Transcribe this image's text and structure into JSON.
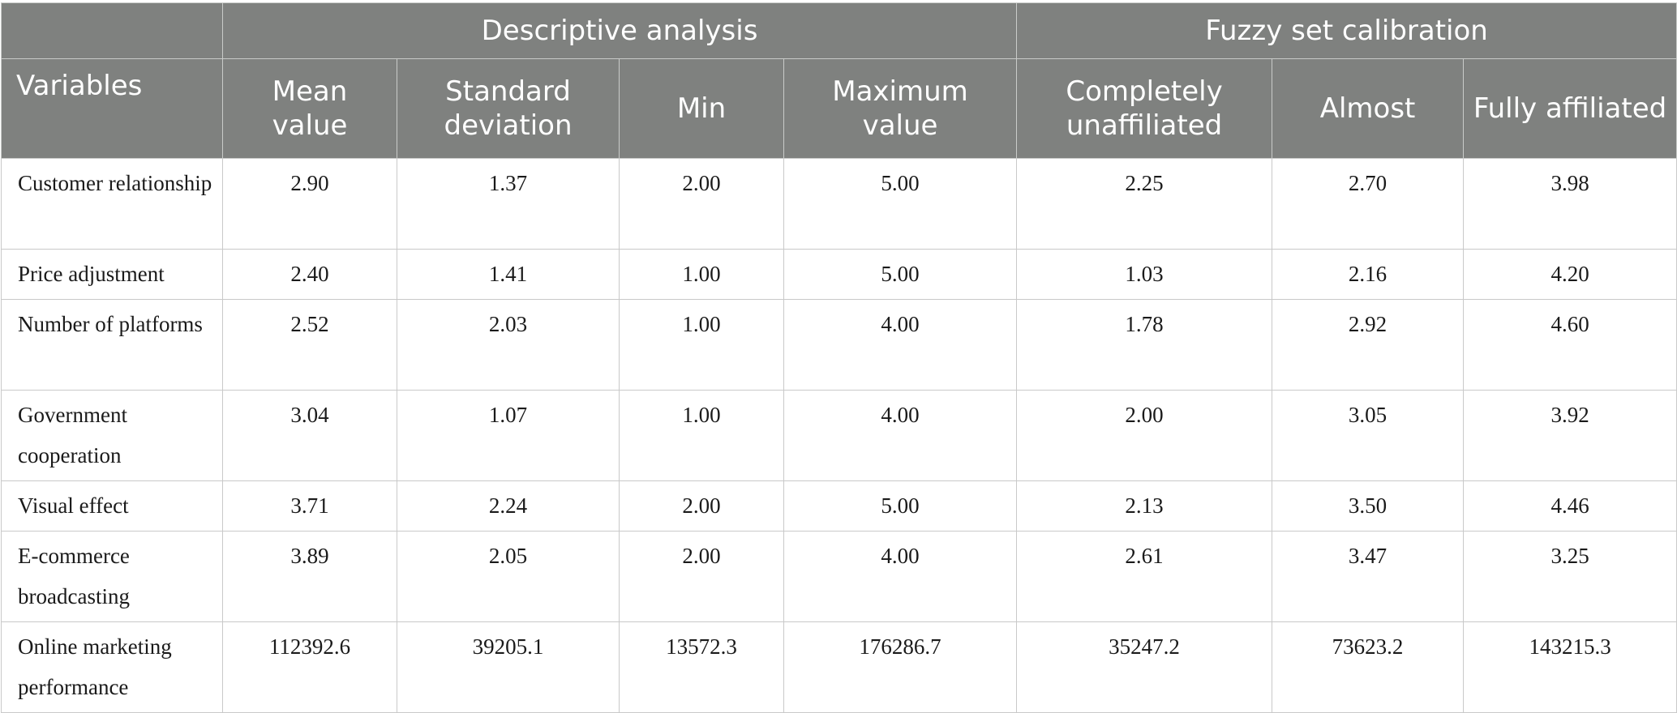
{
  "groups": {
    "descriptive": "Descriptive analysis",
    "fuzzy": "Fuzzy set calibration"
  },
  "columns": {
    "variables": "Variables",
    "mean": "Mean value",
    "sd": "Standard deviation",
    "min": "Min",
    "max": "Maximum value",
    "unaffiliated": "Completely unaffiliated",
    "almost": "Almost",
    "affiliated": "Fully affiliated"
  },
  "rows": [
    {
      "variable": "Customer relationship",
      "mean": "2.90",
      "sd": "1.37",
      "min": "2.00",
      "max": "5.00",
      "unaffiliated": "2.25",
      "almost": "2.70",
      "affiliated": "3.98"
    },
    {
      "variable": "Price adjustment",
      "mean": "2.40",
      "sd": "1.41",
      "min": "1.00",
      "max": "5.00",
      "unaffiliated": "1.03",
      "almost": "2.16",
      "affiliated": "4.20"
    },
    {
      "variable": "Number of platforms",
      "mean": "2.52",
      "sd": "2.03",
      "min": "1.00",
      "max": "4.00",
      "unaffiliated": "1.78",
      "almost": "2.92",
      "affiliated": "4.60"
    },
    {
      "variable": "Government cooperation",
      "mean": "3.04",
      "sd": "1.07",
      "min": "1.00",
      "max": "4.00",
      "unaffiliated": "2.00",
      "almost": "3.05",
      "affiliated": "3.92"
    },
    {
      "variable": "Visual effect",
      "mean": "3.71",
      "sd": "2.24",
      "min": "2.00",
      "max": "5.00",
      "unaffiliated": "2.13",
      "almost": "3.50",
      "affiliated": "4.46"
    },
    {
      "variable": "E-commerce broadcasting",
      "mean": "3.89",
      "sd": "2.05",
      "min": "2.00",
      "max": "4.00",
      "unaffiliated": "2.61",
      "almost": "3.47",
      "affiliated": "3.25"
    },
    {
      "variable": "Online marketing performance",
      "mean": "112392.6",
      "sd": "39205.1",
      "min": "13572.3",
      "max": "176286.7",
      "unaffiliated": "35247.2",
      "almost": "73623.2",
      "affiliated": "143215.3"
    }
  ]
}
